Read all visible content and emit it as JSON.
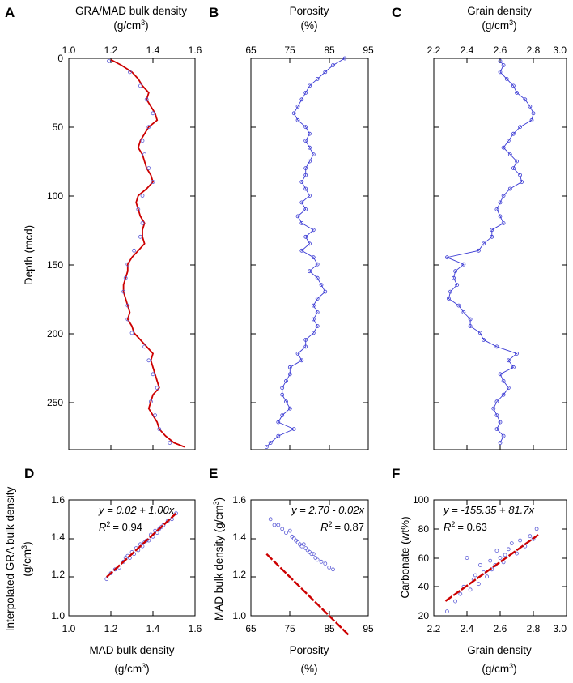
{
  "chart_data": [
    {
      "id": "A",
      "panel_label": "A",
      "type": "line",
      "title": "GRA/MAD bulk density",
      "title_unit_base": "(g/cm",
      "title_unit_sup": "3",
      "title_unit_end": ")",
      "xlabel": "GRA/MAD bulk density",
      "ylabel": "Depth (mcd)",
      "xlim": [
        1.0,
        1.6
      ],
      "ylim": [
        0,
        285
      ],
      "y_inverted": true,
      "xticks": [
        "1.0",
        "1.2",
        "1.4",
        "1.6"
      ],
      "yticks": [
        "0",
        "50",
        "100",
        "150",
        "200",
        "250"
      ],
      "series": [
        {
          "name": "GRA",
          "style": "line",
          "color": "#cc0000",
          "depth": [
            1,
            5,
            10,
            15,
            20,
            25,
            30,
            35,
            40,
            45,
            50,
            55,
            60,
            65,
            70,
            75,
            80,
            85,
            90,
            95,
            100,
            105,
            110,
            115,
            120,
            125,
            130,
            135,
            140,
            145,
            150,
            155,
            160,
            165,
            170,
            175,
            180,
            185,
            190,
            195,
            200,
            205,
            210,
            215,
            220,
            225,
            230,
            235,
            240,
            245,
            250,
            255,
            260,
            265,
            270,
            275,
            280,
            283
          ],
          "value": [
            1.2,
            1.25,
            1.3,
            1.33,
            1.35,
            1.38,
            1.37,
            1.39,
            1.41,
            1.42,
            1.38,
            1.36,
            1.34,
            1.33,
            1.35,
            1.36,
            1.37,
            1.39,
            1.4,
            1.37,
            1.33,
            1.32,
            1.33,
            1.34,
            1.36,
            1.35,
            1.35,
            1.36,
            1.33,
            1.3,
            1.28,
            1.28,
            1.27,
            1.26,
            1.26,
            1.27,
            1.28,
            1.29,
            1.28,
            1.3,
            1.31,
            1.34,
            1.37,
            1.4,
            1.39,
            1.4,
            1.41,
            1.42,
            1.43,
            1.4,
            1.39,
            1.38,
            1.4,
            1.42,
            1.43,
            1.46,
            1.5,
            1.55
          ]
        },
        {
          "name": "MAD",
          "style": "points",
          "color": "#5b5bd6",
          "depth": [
            2,
            10,
            20,
            30,
            40,
            50,
            60,
            70,
            80,
            90,
            100,
            110,
            120,
            130,
            140,
            150,
            160,
            170,
            180,
            190,
            200,
            210,
            220,
            230,
            240,
            250,
            260,
            270,
            280
          ],
          "value": [
            1.19,
            1.29,
            1.34,
            1.37,
            1.4,
            1.38,
            1.35,
            1.36,
            1.38,
            1.4,
            1.35,
            1.33,
            1.35,
            1.34,
            1.31,
            1.28,
            1.27,
            1.26,
            1.28,
            1.28,
            1.3,
            1.36,
            1.38,
            1.4,
            1.42,
            1.39,
            1.41,
            1.43,
            1.48
          ]
        }
      ]
    },
    {
      "id": "B",
      "panel_label": "B",
      "type": "line",
      "title": "Porosity",
      "title_unit": "(%)",
      "xlabel": "Porosity (%)",
      "xlim": [
        65,
        95
      ],
      "ylim": [
        0,
        285
      ],
      "y_inverted": true,
      "xticks": [
        "65",
        "75",
        "85",
        "95"
      ],
      "series": [
        {
          "name": "Porosity",
          "style": "line+points",
          "color": "#3a3ad4",
          "depth": [
            0,
            5,
            10,
            15,
            20,
            25,
            30,
            35,
            40,
            45,
            50,
            55,
            60,
            65,
            70,
            75,
            80,
            85,
            90,
            95,
            100,
            105,
            110,
            115,
            120,
            125,
            130,
            135,
            140,
            145,
            150,
            155,
            160,
            165,
            170,
            175,
            180,
            185,
            190,
            195,
            200,
            205,
            210,
            215,
            220,
            225,
            230,
            235,
            240,
            245,
            250,
            255,
            260,
            265,
            270,
            275,
            280,
            283
          ],
          "value": [
            89,
            86,
            84,
            82,
            80,
            79,
            78,
            77,
            76,
            77,
            79,
            80,
            79,
            80,
            81,
            80,
            79,
            79,
            78,
            79,
            80,
            78,
            79,
            77,
            78,
            81,
            79,
            80,
            78,
            81,
            82,
            80,
            82,
            83,
            84,
            82,
            81,
            82,
            81,
            82,
            81,
            79,
            79,
            77,
            78,
            75,
            75,
            74,
            73,
            73,
            74,
            75,
            73,
            72,
            76,
            72,
            70,
            69
          ]
        }
      ]
    },
    {
      "id": "C",
      "panel_label": "C",
      "type": "line",
      "title": "Grain density",
      "title_unit_base": "(g/cm",
      "title_unit_sup": "3",
      "title_unit_end": ")",
      "xlabel": "Grain density",
      "xlim": [
        2.2,
        3.0
      ],
      "ylim": [
        0,
        285
      ],
      "y_inverted": true,
      "xticks": [
        "2.2",
        "2.4",
        "2.6",
        "2.8",
        "3.0"
      ],
      "series": [
        {
          "name": "Grain density",
          "style": "line+points",
          "color": "#3a3ad4",
          "depth": [
            2,
            5,
            10,
            15,
            20,
            25,
            30,
            35,
            40,
            45,
            50,
            55,
            60,
            65,
            70,
            75,
            80,
            85,
            90,
            95,
            100,
            105,
            110,
            115,
            120,
            125,
            130,
            135,
            140,
            145,
            150,
            155,
            160,
            165,
            170,
            175,
            180,
            185,
            190,
            195,
            200,
            205,
            210,
            215,
            220,
            225,
            230,
            235,
            240,
            245,
            250,
            255,
            260,
            265,
            270,
            275,
            280
          ],
          "value": [
            2.6,
            2.62,
            2.6,
            2.64,
            2.68,
            2.7,
            2.75,
            2.78,
            2.8,
            2.79,
            2.72,
            2.68,
            2.65,
            2.62,
            2.66,
            2.7,
            2.68,
            2.72,
            2.73,
            2.66,
            2.62,
            2.6,
            2.58,
            2.6,
            2.62,
            2.55,
            2.55,
            2.5,
            2.47,
            2.28,
            2.38,
            2.33,
            2.32,
            2.34,
            2.3,
            2.29,
            2.35,
            2.38,
            2.42,
            2.42,
            2.48,
            2.5,
            2.58,
            2.7,
            2.65,
            2.68,
            2.6,
            2.62,
            2.65,
            2.62,
            2.58,
            2.56,
            2.58,
            2.6,
            2.58,
            2.62,
            2.6
          ]
        }
      ]
    },
    {
      "id": "D",
      "panel_label": "D",
      "type": "scatter",
      "xlabel": "MAD bulk density",
      "xlabel_unit_base": "(g/cm",
      "xlabel_unit_sup": "3",
      "xlabel_unit_end": ")",
      "ylabel": "Interpolated GRA bulk density",
      "ylabel_unit_base": "(g/cm",
      "ylabel_unit_sup": "3",
      "ylabel_unit_end": ")",
      "xlim": [
        1.0,
        1.6
      ],
      "ylim": [
        1.0,
        1.6
      ],
      "xticks": [
        "1.0",
        "1.2",
        "1.4",
        "1.6"
      ],
      "yticks": [
        "1.0",
        "1.2",
        "1.4",
        "1.6"
      ],
      "equation": "y = 0.02 + 1.00x",
      "r2_label": "R",
      "r2_value": "= 0.94",
      "fit": {
        "intercept": 0.02,
        "slope": 1.0,
        "x_range": [
          1.18,
          1.51
        ]
      },
      "points_x": [
        1.18,
        1.2,
        1.22,
        1.24,
        1.26,
        1.27,
        1.28,
        1.29,
        1.3,
        1.31,
        1.32,
        1.33,
        1.34,
        1.35,
        1.36,
        1.37,
        1.38,
        1.39,
        1.4,
        1.41,
        1.42,
        1.43,
        1.44,
        1.45,
        1.47,
        1.49,
        1.51
      ],
      "points_y": [
        1.19,
        1.22,
        1.24,
        1.25,
        1.28,
        1.3,
        1.31,
        1.3,
        1.33,
        1.32,
        1.35,
        1.34,
        1.37,
        1.36,
        1.38,
        1.39,
        1.39,
        1.42,
        1.41,
        1.44,
        1.43,
        1.45,
        1.46,
        1.47,
        1.49,
        1.5,
        1.53
      ]
    },
    {
      "id": "E",
      "panel_label": "E",
      "type": "scatter",
      "xlabel": "Porosity",
      "xlabel_unit": "(%)",
      "ylabel": "MAD bulk density (g/cm",
      "ylabel_sup": "3",
      "ylabel_end": ")",
      "xlim": [
        65,
        95
      ],
      "ylim": [
        1.0,
        1.6
      ],
      "xticks": [
        "65",
        "75",
        "85",
        "95"
      ],
      "yticks": [
        "1.0",
        "1.2",
        "1.4",
        "1.6"
      ],
      "equation": "y = 2.70 - 0.02x",
      "r2_label": "R",
      "r2_value": "= 0.87",
      "fit": {
        "intercept": 2.7,
        "slope": -0.02,
        "x_range": [
          69,
          90
        ]
      },
      "points_x": [
        70,
        71,
        72,
        73,
        74,
        75,
        75.5,
        76,
        76.5,
        77,
        77.5,
        78,
        78.5,
        79,
        79.5,
        80,
        80.5,
        81,
        81.5,
        82,
        83,
        84,
        85,
        86
      ],
      "points_y": [
        1.5,
        1.47,
        1.47,
        1.45,
        1.43,
        1.44,
        1.41,
        1.4,
        1.39,
        1.38,
        1.37,
        1.36,
        1.37,
        1.35,
        1.34,
        1.33,
        1.32,
        1.32,
        1.3,
        1.29,
        1.28,
        1.27,
        1.25,
        1.24
      ]
    },
    {
      "id": "F",
      "panel_label": "F",
      "type": "scatter",
      "xlabel": "Grain density",
      "xlabel_unit_base": "(g/cm",
      "xlabel_unit_sup": "3",
      "xlabel_unit_end": ")",
      "ylabel": "Carbonate (wt%)",
      "xlim": [
        2.2,
        3.0
      ],
      "ylim": [
        20,
        100
      ],
      "xticks": [
        "2.2",
        "2.4",
        "2.6",
        "2.8",
        "3.0"
      ],
      "yticks": [
        "20",
        "40",
        "60",
        "80",
        "100"
      ],
      "equation": "y = -155.35 + 81.7x",
      "r2_label": "R",
      "r2_value": "= 0.63",
      "fit": {
        "intercept": -155.35,
        "slope": 81.7,
        "x_range": [
          2.27,
          2.83
        ]
      },
      "points_x": [
        2.28,
        2.33,
        2.36,
        2.38,
        2.4,
        2.42,
        2.44,
        2.45,
        2.47,
        2.48,
        2.5,
        2.52,
        2.54,
        2.55,
        2.57,
        2.58,
        2.6,
        2.62,
        2.63,
        2.65,
        2.67,
        2.7,
        2.72,
        2.75,
        2.78,
        2.8,
        2.82
      ],
      "points_y": [
        23,
        30,
        35,
        40,
        60,
        38,
        45,
        48,
        42,
        55,
        50,
        47,
        58,
        52,
        55,
        65,
        60,
        57,
        62,
        66,
        70,
        63,
        72,
        68,
        75,
        73,
        80
      ]
    }
  ]
}
